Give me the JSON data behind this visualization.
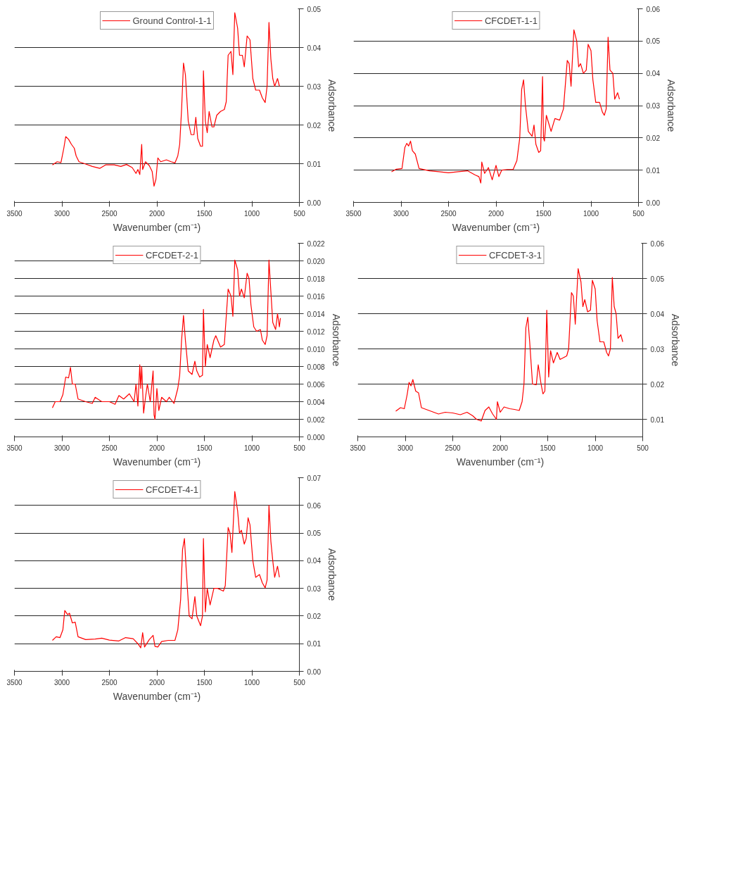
{
  "chart_data": [
    {
      "type": "line",
      "xlabel": "Wavenumber (cm⁻¹)",
      "ylabel": "Adsorbance",
      "xlim": [
        3500,
        500
      ],
      "xticks": [
        3500,
        3000,
        2500,
        2000,
        1500,
        1000,
        500
      ],
      "ylim": [
        0,
        0.05
      ],
      "yticks": [
        {
          "value": 0,
          "label": "0.00"
        },
        {
          "value": 0.01,
          "label": "0.01"
        },
        {
          "value": 0.02,
          "label": "0.02"
        },
        {
          "value": 0.03,
          "label": "0.03"
        },
        {
          "value": 0.04,
          "label": "0.04"
        },
        {
          "value": 0.05,
          "label": "0.05"
        }
      ],
      "grid": "y",
      "legend": "top",
      "x": [
        3100,
        3050,
        3010,
        2980,
        2960,
        2930,
        2900,
        2870,
        2850,
        2820,
        2750,
        2680,
        2600,
        2540,
        2450,
        2380,
        2320,
        2260,
        2220,
        2200,
        2180,
        2160,
        2150,
        2120,
        2080,
        2050,
        2030,
        2010,
        1990,
        1960,
        1900,
        1850,
        1810,
        1780,
        1760,
        1740,
        1720,
        1700,
        1670,
        1640,
        1610,
        1590,
        1570,
        1540,
        1520,
        1510,
        1490,
        1470,
        1450,
        1420,
        1400,
        1370,
        1330,
        1290,
        1270,
        1250,
        1220,
        1200,
        1180,
        1150,
        1130,
        1100,
        1080,
        1050,
        1020,
        990,
        960,
        920,
        890,
        860,
        840,
        820,
        800,
        780,
        760,
        730,
        710
      ],
      "series": [
        {
          "name": "Ground Control-1-1",
          "color": "#ff0000",
          "values": [
            0.0097,
            0.0105,
            0.0103,
            0.014,
            0.017,
            0.0163,
            0.015,
            0.014,
            0.012,
            0.0105,
            0.0099,
            0.0093,
            0.0088,
            0.0097,
            0.0097,
            0.0093,
            0.0098,
            0.009,
            0.0075,
            0.0085,
            0.0072,
            0.015,
            0.0085,
            0.0105,
            0.0095,
            0.008,
            0.0042,
            0.006,
            0.0115,
            0.0105,
            0.011,
            0.0105,
            0.0102,
            0.012,
            0.015,
            0.024,
            0.036,
            0.033,
            0.021,
            0.0175,
            0.0175,
            0.022,
            0.0165,
            0.0145,
            0.0145,
            0.034,
            0.021,
            0.018,
            0.0235,
            0.0195,
            0.0195,
            0.0225,
            0.0235,
            0.024,
            0.026,
            0.038,
            0.039,
            0.033,
            0.049,
            0.045,
            0.038,
            0.038,
            0.035,
            0.043,
            0.042,
            0.032,
            0.029,
            0.029,
            0.027,
            0.0258,
            0.03,
            0.0465,
            0.037,
            0.032,
            0.03,
            0.032,
            0.03
          ]
        }
      ]
    },
    {
      "type": "line",
      "xlabel": "Wavenumber (cm⁻¹)",
      "ylabel": "Adsorbance",
      "xlim": [
        3500,
        500
      ],
      "xticks": [
        3500,
        3000,
        2500,
        2000,
        1500,
        1000,
        500
      ],
      "ylim": [
        0,
        0.06
      ],
      "yticks": [
        {
          "value": 0,
          "label": "0.00"
        },
        {
          "value": 0.01,
          "label": "0.01"
        },
        {
          "value": 0.02,
          "label": "0.02"
        },
        {
          "value": 0.03,
          "label": "0.03"
        },
        {
          "value": 0.04,
          "label": "0.04"
        },
        {
          "value": 0.05,
          "label": "0.05"
        },
        {
          "value": 0.06,
          "label": "0.06"
        }
      ],
      "grid": "y",
      "legend": "top",
      "x": [
        3100,
        3050,
        2990,
        2960,
        2940,
        2920,
        2900,
        2880,
        2850,
        2810,
        2700,
        2600,
        2500,
        2400,
        2300,
        2220,
        2180,
        2160,
        2150,
        2120,
        2080,
        2040,
        2000,
        1970,
        1940,
        1880,
        1820,
        1780,
        1750,
        1730,
        1710,
        1690,
        1660,
        1620,
        1600,
        1580,
        1550,
        1530,
        1510,
        1500,
        1490,
        1470,
        1440,
        1420,
        1380,
        1330,
        1290,
        1250,
        1230,
        1210,
        1180,
        1150,
        1130,
        1110,
        1080,
        1050,
        1030,
        1000,
        980,
        950,
        910,
        880,
        860,
        840,
        820,
        800,
        770,
        750,
        720,
        700
      ],
      "series": [
        {
          "name": "CFCDET-1-1",
          "color": "#ff0000",
          "values": [
            0.0095,
            0.0103,
            0.0105,
            0.017,
            0.0183,
            0.0175,
            0.019,
            0.016,
            0.015,
            0.0105,
            0.0098,
            0.0095,
            0.0092,
            0.0095,
            0.0098,
            0.0085,
            0.008,
            0.006,
            0.0125,
            0.009,
            0.0108,
            0.007,
            0.0115,
            0.008,
            0.01,
            0.0102,
            0.0102,
            0.013,
            0.02,
            0.035,
            0.038,
            0.03,
            0.022,
            0.0205,
            0.024,
            0.018,
            0.0155,
            0.016,
            0.039,
            0.02,
            0.019,
            0.027,
            0.024,
            0.022,
            0.026,
            0.0255,
            0.029,
            0.044,
            0.043,
            0.036,
            0.0535,
            0.05,
            0.042,
            0.043,
            0.04,
            0.041,
            0.049,
            0.047,
            0.038,
            0.031,
            0.031,
            0.028,
            0.027,
            0.029,
            0.0512,
            0.041,
            0.04,
            0.032,
            0.034,
            0.032
          ]
        }
      ]
    },
    {
      "type": "line",
      "xlabel": "Wavenumber (cm⁻¹)",
      "ylabel": "Adsorbance",
      "xlim": [
        3500,
        500
      ],
      "xticks": [
        3500,
        3000,
        2500,
        2000,
        1500,
        1000,
        500
      ],
      "ylim": [
        0,
        0.022
      ],
      "yticks": [
        {
          "value": 0,
          "label": "0.000"
        },
        {
          "value": 0.002,
          "label": "0.002"
        },
        {
          "value": 0.004,
          "label": "0.004"
        },
        {
          "value": 0.006,
          "label": "0.006"
        },
        {
          "value": 0.008,
          "label": "0.008"
        },
        {
          "value": 0.01,
          "label": "0.010"
        },
        {
          "value": 0.012,
          "label": "0.012"
        },
        {
          "value": 0.014,
          "label": "0.014"
        },
        {
          "value": 0.016,
          "label": "0.016"
        },
        {
          "value": 0.018,
          "label": "0.018"
        },
        {
          "value": 0.02,
          "label": "0.020"
        },
        {
          "value": 0.022,
          "label": "0.022"
        }
      ],
      "grid": "y",
      "legend": "top",
      "x": [
        3100,
        3070,
        3020,
        2990,
        2960,
        2930,
        2910,
        2890,
        2860,
        2830,
        2750,
        2680,
        2650,
        2580,
        2500,
        2440,
        2400,
        2350,
        2290,
        2240,
        2220,
        2200,
        2180,
        2170,
        2160,
        2140,
        2120,
        2100,
        2070,
        2040,
        2030,
        2020,
        2000,
        1980,
        1950,
        1900,
        1870,
        1820,
        1780,
        1760,
        1740,
        1720,
        1700,
        1670,
        1630,
        1600,
        1580,
        1550,
        1520,
        1510,
        1490,
        1470,
        1440,
        1400,
        1380,
        1330,
        1290,
        1250,
        1220,
        1200,
        1180,
        1150,
        1130,
        1110,
        1080,
        1050,
        1030,
        1010,
        980,
        950,
        910,
        890,
        860,
        840,
        820,
        800,
        780,
        750,
        730,
        710,
        700
      ],
      "series": [
        {
          "name": "CFCDET-2-1",
          "color": "#ff0000",
          "values": [
            0.0033,
            0.004,
            0.004,
            0.0048,
            0.0068,
            0.0067,
            0.0079,
            0.006,
            0.006,
            0.0043,
            0.004,
            0.0038,
            0.0045,
            0.004,
            0.004,
            0.0037,
            0.0047,
            0.0043,
            0.0049,
            0.004,
            0.006,
            0.0035,
            0.0082,
            0.0055,
            0.008,
            0.0027,
            0.0045,
            0.006,
            0.004,
            0.0075,
            0.0025,
            0.002,
            0.0055,
            0.003,
            0.0045,
            0.004,
            0.0045,
            0.0038,
            0.0055,
            0.007,
            0.011,
            0.0138,
            0.011,
            0.0075,
            0.0071,
            0.0086,
            0.0075,
            0.0068,
            0.007,
            0.0145,
            0.008,
            0.0105,
            0.009,
            0.011,
            0.0115,
            0.0102,
            0.0105,
            0.0168,
            0.016,
            0.0137,
            0.0201,
            0.019,
            0.016,
            0.0168,
            0.0158,
            0.0186,
            0.018,
            0.015,
            0.0125,
            0.012,
            0.0122,
            0.011,
            0.0105,
            0.0115,
            0.0201,
            0.0165,
            0.013,
            0.0122,
            0.014,
            0.0125,
            0.0135
          ]
        }
      ]
    },
    {
      "type": "line",
      "xlabel": "Wavenumber (cm⁻¹)",
      "ylabel": "Adsorbance",
      "xlim": [
        3500,
        500
      ],
      "xticks": [
        3500,
        3000,
        2500,
        2000,
        1500,
        1000,
        500
      ],
      "ylim": [
        0.005,
        0.06
      ],
      "yticks": [
        {
          "value": 0.01,
          "label": "0.01"
        },
        {
          "value": 0.02,
          "label": "0.02"
        },
        {
          "value": 0.03,
          "label": "0.03"
        },
        {
          "value": 0.04,
          "label": "0.04"
        },
        {
          "value": 0.05,
          "label": "0.05"
        },
        {
          "value": 0.06,
          "label": "0.06"
        }
      ],
      "grid": "y",
      "legend": "top",
      "x": [
        3100,
        3050,
        3010,
        2980,
        2960,
        2940,
        2920,
        2890,
        2860,
        2830,
        2750,
        2650,
        2580,
        2500,
        2420,
        2350,
        2290,
        2250,
        2200,
        2160,
        2120,
        2080,
        2040,
        2030,
        2000,
        1960,
        1900,
        1850,
        1800,
        1770,
        1750,
        1730,
        1710,
        1690,
        1660,
        1620,
        1600,
        1570,
        1550,
        1530,
        1510,
        1490,
        1470,
        1440,
        1400,
        1370,
        1300,
        1280,
        1250,
        1230,
        1210,
        1180,
        1150,
        1130,
        1110,
        1080,
        1050,
        1030,
        1000,
        980,
        950,
        910,
        880,
        860,
        840,
        820,
        800,
        780,
        760,
        730,
        710
      ],
      "series": [
        {
          "name": "CFCDET-3-1",
          "color": "#ff0000",
          "values": [
            0.0123,
            0.0133,
            0.013,
            0.017,
            0.0205,
            0.0195,
            0.0213,
            0.018,
            0.0175,
            0.0133,
            0.0125,
            0.0115,
            0.012,
            0.0118,
            0.0113,
            0.012,
            0.011,
            0.01,
            0.0095,
            0.0125,
            0.0135,
            0.0115,
            0.01,
            0.015,
            0.012,
            0.0135,
            0.013,
            0.0128,
            0.0125,
            0.015,
            0.02,
            0.036,
            0.039,
            0.032,
            0.02,
            0.0198,
            0.0255,
            0.02,
            0.0172,
            0.018,
            0.041,
            0.022,
            0.0295,
            0.026,
            0.029,
            0.027,
            0.028,
            0.03,
            0.046,
            0.045,
            0.037,
            0.0528,
            0.049,
            0.042,
            0.044,
            0.0405,
            0.041,
            0.0495,
            0.047,
            0.038,
            0.032,
            0.032,
            0.029,
            0.028,
            0.03,
            0.0503,
            0.042,
            0.04,
            0.033,
            0.034,
            0.032
          ]
        }
      ]
    },
    {
      "type": "line",
      "xlabel": "Wavenumber (cm⁻¹)",
      "ylabel": "Adsorbance",
      "xlim": [
        3500,
        500
      ],
      "xticks": [
        3500,
        3000,
        2500,
        2000,
        1500,
        1000,
        500
      ],
      "ylim": [
        0,
        0.07
      ],
      "yticks": [
        {
          "value": 0,
          "label": "0.00"
        },
        {
          "value": 0.01,
          "label": "0.01"
        },
        {
          "value": 0.02,
          "label": "0.02"
        },
        {
          "value": 0.03,
          "label": "0.03"
        },
        {
          "value": 0.04,
          "label": "0.04"
        },
        {
          "value": 0.05,
          "label": "0.05"
        },
        {
          "value": 0.06,
          "label": "0.06"
        },
        {
          "value": 0.07,
          "label": "0.07"
        }
      ],
      "grid": "y",
      "legend": "top",
      "x": [
        3100,
        3060,
        3020,
        2990,
        2970,
        2940,
        2920,
        2890,
        2860,
        2830,
        2750,
        2650,
        2580,
        2500,
        2400,
        2330,
        2250,
        2200,
        2170,
        2150,
        2130,
        2080,
        2040,
        2020,
        1990,
        1950,
        1880,
        1810,
        1780,
        1750,
        1730,
        1710,
        1690,
        1660,
        1630,
        1600,
        1580,
        1540,
        1520,
        1510,
        1490,
        1470,
        1440,
        1400,
        1360,
        1300,
        1280,
        1250,
        1230,
        1210,
        1180,
        1150,
        1130,
        1110,
        1080,
        1060,
        1040,
        1020,
        990,
        960,
        920,
        890,
        860,
        840,
        820,
        800,
        780,
        760,
        730,
        710
      ],
      "series": [
        {
          "name": "CFCDET-4-1",
          "color": "#ff0000",
          "values": [
            0.0112,
            0.0125,
            0.0122,
            0.015,
            0.022,
            0.0205,
            0.021,
            0.0175,
            0.0178,
            0.0125,
            0.0115,
            0.0117,
            0.012,
            0.0113,
            0.011,
            0.0122,
            0.0118,
            0.01,
            0.0085,
            0.014,
            0.0088,
            0.0115,
            0.013,
            0.009,
            0.0088,
            0.0108,
            0.0112,
            0.0112,
            0.015,
            0.026,
            0.044,
            0.048,
            0.036,
            0.02,
            0.019,
            0.027,
            0.02,
            0.0165,
            0.02,
            0.048,
            0.0215,
            0.03,
            0.024,
            0.03,
            0.03,
            0.029,
            0.031,
            0.052,
            0.05,
            0.043,
            0.065,
            0.058,
            0.05,
            0.051,
            0.046,
            0.048,
            0.0555,
            0.053,
            0.04,
            0.034,
            0.035,
            0.032,
            0.0302,
            0.033,
            0.06,
            0.047,
            0.04,
            0.034,
            0.038,
            0.034
          ]
        }
      ]
    }
  ]
}
